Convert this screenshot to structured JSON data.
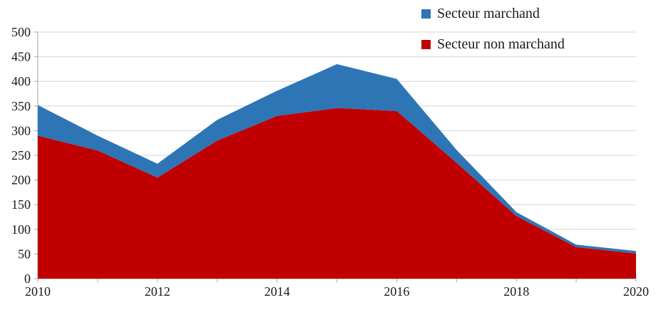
{
  "chart_data": {
    "type": "area",
    "stacked": true,
    "title": "",
    "xlabel": "",
    "ylabel": "",
    "x": [
      2010,
      2011,
      2012,
      2013,
      2014,
      2015,
      2016,
      2017,
      2018,
      2019,
      2020
    ],
    "series": [
      {
        "name": "Secteur marchand",
        "color": "#2E75B6",
        "values": [
          62,
          30,
          28,
          42,
          51,
          89,
          65,
          26,
          8,
          5,
          5
        ]
      },
      {
        "name": "Secteur non marchand",
        "color": "#C00000",
        "values": [
          290,
          260,
          205,
          280,
          330,
          346,
          340,
          235,
          127,
          64,
          51
        ]
      }
    ],
    "stacked_totals": [
      352,
      290,
      233,
      322,
      381,
      435,
      405,
      261,
      135,
      69,
      56
    ],
    "ylim": [
      0,
      500
    ],
    "ytick_step": 50,
    "ytick_labels": [
      "0",
      "50",
      "100",
      "150",
      "200",
      "250",
      "300",
      "350",
      "400",
      "450",
      "500"
    ],
    "xtick_labeled": [
      2010,
      2012,
      2014,
      2016,
      2018,
      2020
    ],
    "grid": "horizontal",
    "grid_color": "#D6D6D6",
    "axis_color": "#A6A6A6",
    "text_color": "#1A1A1A",
    "legend_position": "top-right"
  },
  "legend": {
    "items": [
      {
        "label": "Secteur marchand",
        "color": "#2E75B6"
      },
      {
        "label": "Secteur non marchand",
        "color": "#C00000"
      }
    ]
  }
}
